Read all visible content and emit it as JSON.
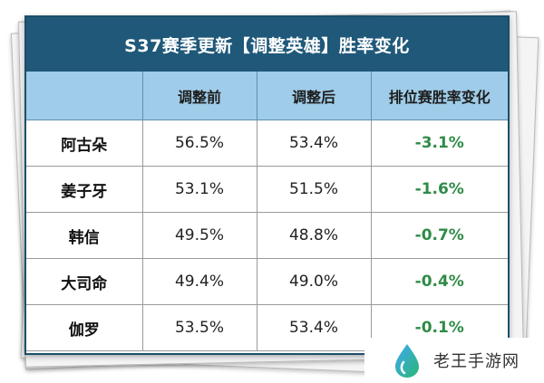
{
  "title": "S37赛季更新【调整英雄】胜率变化",
  "table": {
    "headers": [
      "",
      "调整前",
      "调整后",
      "排位赛胜率变化"
    ],
    "rows": [
      {
        "hero": "阿古朵",
        "before": "56.5%",
        "after": "53.4%",
        "change": "-3.1%"
      },
      {
        "hero": "姜子牙",
        "before": "53.1%",
        "after": "51.5%",
        "change": "-1.6%"
      },
      {
        "hero": "韩信",
        "before": "49.5%",
        "after": "48.8%",
        "change": "-0.7%"
      },
      {
        "hero": "大司命",
        "before": "49.4%",
        "after": "49.0%",
        "change": "-0.4%"
      },
      {
        "hero": "伽罗",
        "before": "53.5%",
        "after": "53.4%",
        "change": "-0.1%"
      }
    ]
  },
  "watermark": {
    "text": "老王手游网",
    "icon": "water-drop-icon"
  },
  "colors": {
    "title_bg": "#1f5879",
    "header_bg": "#9fcce9",
    "change_text": "#2f8b47"
  }
}
